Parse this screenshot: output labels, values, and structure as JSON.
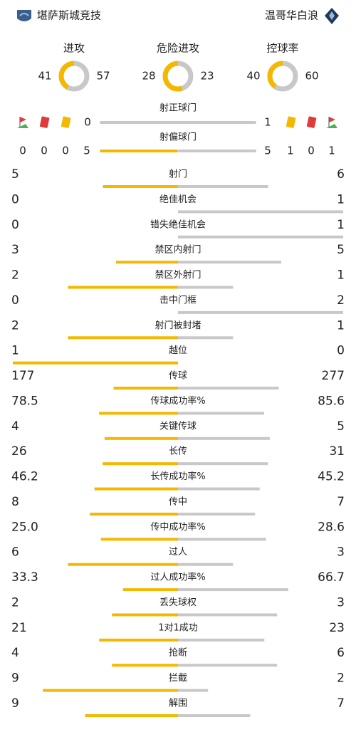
{
  "header": {
    "home": "堪萨斯城竞技",
    "away": "温哥华白浪"
  },
  "summary": [
    {
      "label": "进攻",
      "home": "41",
      "away": "57"
    },
    {
      "label": "危险进攻",
      "home": "28",
      "away": "23"
    },
    {
      "label": "控球率",
      "home": "40",
      "away": "60"
    }
  ],
  "shots_on_target": {
    "label": "射正球门",
    "home": "0",
    "away": "1"
  },
  "shots_off_target": {
    "label": "射偏球门",
    "home": "5",
    "away": "5"
  },
  "cards": {
    "home": {
      "corners": "0",
      "red": "0",
      "yellow": "0"
    },
    "away": {
      "yellow": "1",
      "red": "0",
      "corners": "1"
    }
  },
  "stats": [
    {
      "label": "射门",
      "home": "5",
      "away": "6"
    },
    {
      "label": "绝佳机会",
      "home": "0",
      "away": "1"
    },
    {
      "label": "错失绝佳机会",
      "home": "0",
      "away": "1"
    },
    {
      "label": "禁区内射门",
      "home": "3",
      "away": "5"
    },
    {
      "label": "禁区外射门",
      "home": "2",
      "away": "1"
    },
    {
      "label": "击中门框",
      "home": "0",
      "away": "2"
    },
    {
      "label": "射门被封堵",
      "home": "2",
      "away": "1"
    },
    {
      "label": "越位",
      "home": "1",
      "away": "0"
    },
    {
      "label": "传球",
      "home": "177",
      "away": "277"
    },
    {
      "label": "传球成功率%",
      "home": "78.5",
      "away": "85.6"
    },
    {
      "label": "关键传球",
      "home": "4",
      "away": "5"
    },
    {
      "label": "长传",
      "home": "26",
      "away": "31"
    },
    {
      "label": "长传成功率%",
      "home": "46.2",
      "away": "45.2"
    },
    {
      "label": "传中",
      "home": "8",
      "away": "7"
    },
    {
      "label": "传中成功率%",
      "home": "25.0",
      "away": "28.6"
    },
    {
      "label": "过人",
      "home": "6",
      "away": "3"
    },
    {
      "label": "过人成功率%",
      "home": "33.3",
      "away": "66.7"
    },
    {
      "label": "丢失球权",
      "home": "2",
      "away": "3"
    },
    {
      "label": "1对1成功",
      "home": "21",
      "away": "23"
    },
    {
      "label": "抢断",
      "home": "4",
      "away": "6"
    },
    {
      "label": "拦截",
      "home": "9",
      "away": "2"
    },
    {
      "label": "解围",
      "home": "9",
      "away": "7"
    }
  ]
}
